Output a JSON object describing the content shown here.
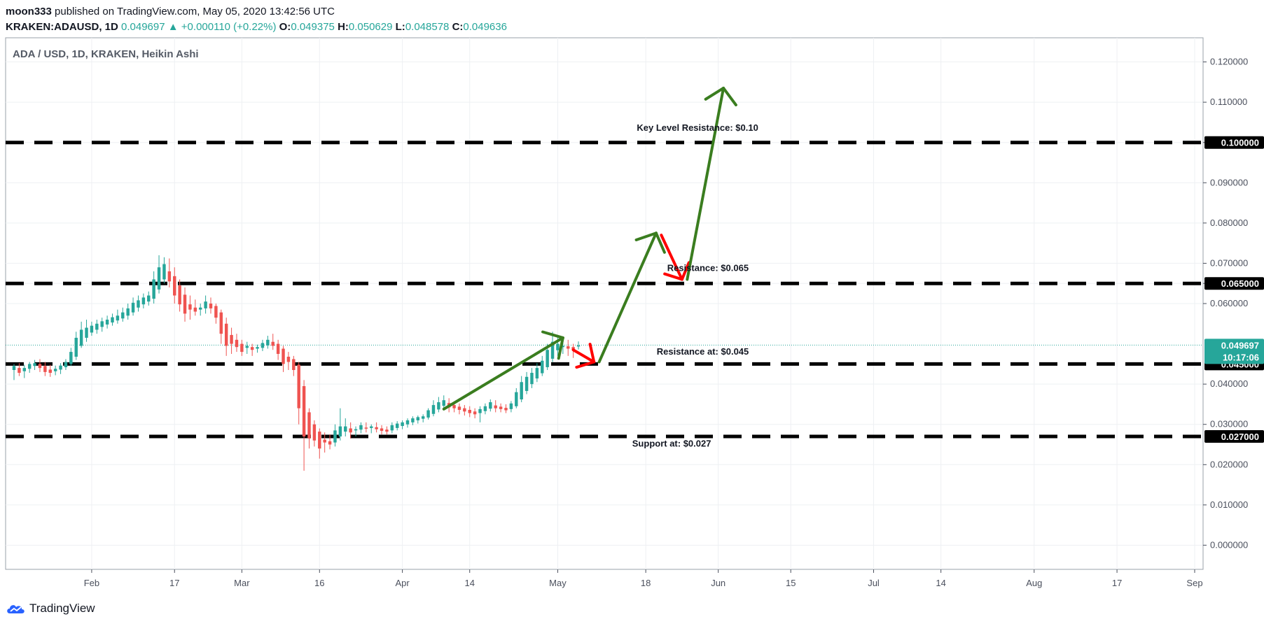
{
  "header": {
    "author": "moon333",
    "published_text": "published on TradingView.com, May 05, 2020 13:42:56 UTC",
    "symbol": "KRAKEN:ADAUSD, 1D",
    "last": "0.049697",
    "change_icon": "triangle-up-icon",
    "change_glyph": "▲",
    "change": "+0.000110 (+0.22%)",
    "o_label": "O:",
    "o_value": "0.049375",
    "h_label": "H:",
    "h_value": "0.050629",
    "l_label": "L:",
    "l_value": "0.048578",
    "c_label": "C:",
    "c_value": "0.049636"
  },
  "footer": {
    "brand": "TradingView"
  },
  "colors": {
    "up": "#26a69a",
    "down": "#ef5350",
    "arrow_green": "#3a7d1f",
    "arrow_red": "#ff0000",
    "level": "#000000",
    "price_tag": "#26a69a",
    "price_line": "#26a69a"
  },
  "chart_data": {
    "type": "candlestick",
    "title": "ADA / USD, 1D, KRAKEN, Heikin Ashi",
    "ylim": [
      -0.006,
      0.126
    ],
    "y_ticks": [
      {
        "value": 0.12,
        "label": "0.120000"
      },
      {
        "value": 0.11,
        "label": "0.110000"
      },
      {
        "value": 0.1,
        "label": "0.100000"
      },
      {
        "value": 0.09,
        "label": "0.090000"
      },
      {
        "value": 0.08,
        "label": "0.080000"
      },
      {
        "value": 0.07,
        "label": "0.070000"
      },
      {
        "value": 0.065,
        "label": "0.065000"
      },
      {
        "value": 0.06,
        "label": "0.060000"
      },
      {
        "value": 0.04,
        "label": "0.040000"
      },
      {
        "value": 0.03,
        "label": "0.030000"
      },
      {
        "value": 0.02,
        "label": "0.020000"
      },
      {
        "value": 0.01,
        "label": "0.010000"
      },
      {
        "value": 0.0,
        "label": "0.000000"
      }
    ],
    "x_range": [
      "2020-01-17",
      "2020-09-01"
    ],
    "x_ticks": [
      {
        "date": "2020-02-01",
        "label": "Feb"
      },
      {
        "date": "2020-02-17",
        "label": "17"
      },
      {
        "date": "2020-03-01",
        "label": "Mar"
      },
      {
        "date": "2020-03-16",
        "label": "16"
      },
      {
        "date": "2020-04-01",
        "label": "Apr"
      },
      {
        "date": "2020-04-14",
        "label": "14"
      },
      {
        "date": "2020-05-01",
        "label": "May"
      },
      {
        "date": "2020-05-18",
        "label": "18"
      },
      {
        "date": "2020-06-01",
        "label": "Jun"
      },
      {
        "date": "2020-06-15",
        "label": "15"
      },
      {
        "date": "2020-07-01",
        "label": "Jul"
      },
      {
        "date": "2020-07-14",
        "label": "14"
      },
      {
        "date": "2020-08-01",
        "label": "Aug"
      },
      {
        "date": "2020-08-17",
        "label": "17"
      },
      {
        "date": "2020-09-01",
        "label": "Sep"
      }
    ],
    "candles": [
      {
        "date": "2020-01-17",
        "o": 0.0435,
        "h": 0.045,
        "l": 0.041,
        "c": 0.0445
      },
      {
        "date": "2020-01-18",
        "o": 0.044,
        "h": 0.0452,
        "l": 0.042,
        "c": 0.0428
      },
      {
        "date": "2020-01-19",
        "o": 0.0432,
        "h": 0.0448,
        "l": 0.0415,
        "c": 0.044
      },
      {
        "date": "2020-01-20",
        "o": 0.0438,
        "h": 0.0455,
        "l": 0.0428,
        "c": 0.045
      },
      {
        "date": "2020-01-21",
        "o": 0.0445,
        "h": 0.046,
        "l": 0.0435,
        "c": 0.0452
      },
      {
        "date": "2020-01-22",
        "o": 0.045,
        "h": 0.0462,
        "l": 0.043,
        "c": 0.044
      },
      {
        "date": "2020-01-23",
        "o": 0.0445,
        "h": 0.0455,
        "l": 0.042,
        "c": 0.043
      },
      {
        "date": "2020-01-24",
        "o": 0.0436,
        "h": 0.0448,
        "l": 0.0418,
        "c": 0.0428
      },
      {
        "date": "2020-01-25",
        "o": 0.0432,
        "h": 0.0446,
        "l": 0.0422,
        "c": 0.0438
      },
      {
        "date": "2020-01-26",
        "o": 0.0436,
        "h": 0.0452,
        "l": 0.0425,
        "c": 0.0446
      },
      {
        "date": "2020-01-27",
        "o": 0.0442,
        "h": 0.0462,
        "l": 0.0435,
        "c": 0.0455
      },
      {
        "date": "2020-01-28",
        "o": 0.045,
        "h": 0.049,
        "l": 0.0445,
        "c": 0.048
      },
      {
        "date": "2020-01-29",
        "o": 0.0468,
        "h": 0.053,
        "l": 0.046,
        "c": 0.0515
      },
      {
        "date": "2020-01-30",
        "o": 0.0495,
        "h": 0.0555,
        "l": 0.049,
        "c": 0.0535
      },
      {
        "date": "2020-01-31",
        "o": 0.0515,
        "h": 0.056,
        "l": 0.0505,
        "c": 0.054
      },
      {
        "date": "2020-02-01",
        "o": 0.0528,
        "h": 0.0555,
        "l": 0.052,
        "c": 0.0545
      },
      {
        "date": "2020-02-02",
        "o": 0.0535,
        "h": 0.056,
        "l": 0.0525,
        "c": 0.055
      },
      {
        "date": "2020-02-03",
        "o": 0.0542,
        "h": 0.0565,
        "l": 0.053,
        "c": 0.0556
      },
      {
        "date": "2020-02-04",
        "o": 0.0548,
        "h": 0.057,
        "l": 0.0538,
        "c": 0.056
      },
      {
        "date": "2020-02-05",
        "o": 0.0553,
        "h": 0.0575,
        "l": 0.0545,
        "c": 0.0566
      },
      {
        "date": "2020-02-06",
        "o": 0.0558,
        "h": 0.0585,
        "l": 0.055,
        "c": 0.057
      },
      {
        "date": "2020-02-07",
        "o": 0.0563,
        "h": 0.059,
        "l": 0.0555,
        "c": 0.0578
      },
      {
        "date": "2020-02-08",
        "o": 0.057,
        "h": 0.06,
        "l": 0.056,
        "c": 0.0588
      },
      {
        "date": "2020-02-09",
        "o": 0.0578,
        "h": 0.0615,
        "l": 0.057,
        "c": 0.0602
      },
      {
        "date": "2020-02-10",
        "o": 0.059,
        "h": 0.062,
        "l": 0.058,
        "c": 0.0608
      },
      {
        "date": "2020-02-11",
        "o": 0.0598,
        "h": 0.0625,
        "l": 0.0588,
        "c": 0.0615
      },
      {
        "date": "2020-02-12",
        "o": 0.0605,
        "h": 0.063,
        "l": 0.0595,
        "c": 0.062
      },
      {
        "date": "2020-02-13",
        "o": 0.0612,
        "h": 0.068,
        "l": 0.06,
        "c": 0.066
      },
      {
        "date": "2020-02-14",
        "o": 0.0635,
        "h": 0.072,
        "l": 0.0625,
        "c": 0.069
      },
      {
        "date": "2020-02-15",
        "o": 0.066,
        "h": 0.0715,
        "l": 0.065,
        "c": 0.0698
      },
      {
        "date": "2020-02-16",
        "o": 0.068,
        "h": 0.0712,
        "l": 0.064,
        "c": 0.0655
      },
      {
        "date": "2020-02-17",
        "o": 0.0668,
        "h": 0.069,
        "l": 0.06,
        "c": 0.062
      },
      {
        "date": "2020-02-18",
        "o": 0.0645,
        "h": 0.066,
        "l": 0.058,
        "c": 0.0598
      },
      {
        "date": "2020-02-19",
        "o": 0.0622,
        "h": 0.064,
        "l": 0.0555,
        "c": 0.0575
      },
      {
        "date": "2020-02-20",
        "o": 0.0598,
        "h": 0.062,
        "l": 0.056,
        "c": 0.0585
      },
      {
        "date": "2020-02-21",
        "o": 0.059,
        "h": 0.061,
        "l": 0.057,
        "c": 0.058
      },
      {
        "date": "2020-02-22",
        "o": 0.0585,
        "h": 0.06,
        "l": 0.057,
        "c": 0.059
      },
      {
        "date": "2020-02-23",
        "o": 0.0588,
        "h": 0.062,
        "l": 0.0575,
        "c": 0.0605
      },
      {
        "date": "2020-02-24",
        "o": 0.06,
        "h": 0.0615,
        "l": 0.0575,
        "c": 0.0588
      },
      {
        "date": "2020-02-25",
        "o": 0.0594,
        "h": 0.06,
        "l": 0.055,
        "c": 0.0565
      },
      {
        "date": "2020-02-26",
        "o": 0.0578,
        "h": 0.0585,
        "l": 0.05,
        "c": 0.0525
      },
      {
        "date": "2020-02-27",
        "o": 0.055,
        "h": 0.0565,
        "l": 0.047,
        "c": 0.0495
      },
      {
        "date": "2020-02-28",
        "o": 0.0522,
        "h": 0.054,
        "l": 0.0475,
        "c": 0.05
      },
      {
        "date": "2020-02-29",
        "o": 0.051,
        "h": 0.0525,
        "l": 0.048,
        "c": 0.0492
      },
      {
        "date": "2020-03-01",
        "o": 0.05,
        "h": 0.051,
        "l": 0.047,
        "c": 0.048
      },
      {
        "date": "2020-03-02",
        "o": 0.049,
        "h": 0.0505,
        "l": 0.0475,
        "c": 0.0495
      },
      {
        "date": "2020-03-03",
        "o": 0.0492,
        "h": 0.05,
        "l": 0.047,
        "c": 0.0485
      },
      {
        "date": "2020-03-04",
        "o": 0.0488,
        "h": 0.0498,
        "l": 0.0478,
        "c": 0.0492
      },
      {
        "date": "2020-03-05",
        "o": 0.049,
        "h": 0.051,
        "l": 0.0482,
        "c": 0.0502
      },
      {
        "date": "2020-03-06",
        "o": 0.0496,
        "h": 0.052,
        "l": 0.0488,
        "c": 0.051
      },
      {
        "date": "2020-03-07",
        "o": 0.0505,
        "h": 0.0525,
        "l": 0.0485,
        "c": 0.0495
      },
      {
        "date": "2020-03-08",
        "o": 0.05,
        "h": 0.051,
        "l": 0.046,
        "c": 0.0475
      },
      {
        "date": "2020-03-09",
        "o": 0.0488,
        "h": 0.0495,
        "l": 0.043,
        "c": 0.045
      },
      {
        "date": "2020-03-10",
        "o": 0.0468,
        "h": 0.048,
        "l": 0.0435,
        "c": 0.0455
      },
      {
        "date": "2020-03-11",
        "o": 0.0462,
        "h": 0.047,
        "l": 0.042,
        "c": 0.0435
      },
      {
        "date": "2020-03-12",
        "o": 0.0448,
        "h": 0.0455,
        "l": 0.03,
        "c": 0.034
      },
      {
        "date": "2020-03-13",
        "o": 0.0395,
        "h": 0.041,
        "l": 0.0185,
        "c": 0.027
      },
      {
        "date": "2020-03-14",
        "o": 0.033,
        "h": 0.034,
        "l": 0.024,
        "c": 0.0265
      },
      {
        "date": "2020-03-15",
        "o": 0.03,
        "h": 0.031,
        "l": 0.0245,
        "c": 0.026
      },
      {
        "date": "2020-03-16",
        "o": 0.0282,
        "h": 0.029,
        "l": 0.0215,
        "c": 0.024
      },
      {
        "date": "2020-03-17",
        "o": 0.0262,
        "h": 0.028,
        "l": 0.023,
        "c": 0.0255
      },
      {
        "date": "2020-03-18",
        "o": 0.0258,
        "h": 0.0275,
        "l": 0.0238,
        "c": 0.025
      },
      {
        "date": "2020-03-19",
        "o": 0.0255,
        "h": 0.03,
        "l": 0.0245,
        "c": 0.0285
      },
      {
        "date": "2020-03-20",
        "o": 0.027,
        "h": 0.034,
        "l": 0.026,
        "c": 0.0295
      },
      {
        "date": "2020-03-21",
        "o": 0.0282,
        "h": 0.0315,
        "l": 0.027,
        "c": 0.0295
      },
      {
        "date": "2020-03-22",
        "o": 0.029,
        "h": 0.0305,
        "l": 0.0265,
        "c": 0.028
      },
      {
        "date": "2020-03-23",
        "o": 0.0285,
        "h": 0.0295,
        "l": 0.027,
        "c": 0.0288
      },
      {
        "date": "2020-03-24",
        "o": 0.0287,
        "h": 0.0305,
        "l": 0.0278,
        "c": 0.0298
      },
      {
        "date": "2020-03-25",
        "o": 0.0292,
        "h": 0.0305,
        "l": 0.028,
        "c": 0.029
      },
      {
        "date": "2020-03-26",
        "o": 0.0291,
        "h": 0.03,
        "l": 0.0278,
        "c": 0.0295
      },
      {
        "date": "2020-03-27",
        "o": 0.0293,
        "h": 0.0305,
        "l": 0.028,
        "c": 0.0288
      },
      {
        "date": "2020-03-28",
        "o": 0.029,
        "h": 0.0298,
        "l": 0.0275,
        "c": 0.0284
      },
      {
        "date": "2020-03-29",
        "o": 0.0287,
        "h": 0.0295,
        "l": 0.0275,
        "c": 0.0282
      },
      {
        "date": "2020-03-30",
        "o": 0.0285,
        "h": 0.0305,
        "l": 0.0278,
        "c": 0.0298
      },
      {
        "date": "2020-03-31",
        "o": 0.0291,
        "h": 0.0308,
        "l": 0.0285,
        "c": 0.0302
      },
      {
        "date": "2020-04-01",
        "o": 0.0296,
        "h": 0.031,
        "l": 0.0288,
        "c": 0.0305
      },
      {
        "date": "2020-04-02",
        "o": 0.03,
        "h": 0.0315,
        "l": 0.0292,
        "c": 0.031
      },
      {
        "date": "2020-04-03",
        "o": 0.0305,
        "h": 0.032,
        "l": 0.0298,
        "c": 0.0315
      },
      {
        "date": "2020-04-04",
        "o": 0.031,
        "h": 0.0322,
        "l": 0.0302,
        "c": 0.0318
      },
      {
        "date": "2020-04-05",
        "o": 0.0314,
        "h": 0.0325,
        "l": 0.0305,
        "c": 0.032
      },
      {
        "date": "2020-04-06",
        "o": 0.0317,
        "h": 0.034,
        "l": 0.0312,
        "c": 0.0335
      },
      {
        "date": "2020-04-07",
        "o": 0.0326,
        "h": 0.036,
        "l": 0.032,
        "c": 0.0348
      },
      {
        "date": "2020-04-08",
        "o": 0.0337,
        "h": 0.0368,
        "l": 0.033,
        "c": 0.0355
      },
      {
        "date": "2020-04-09",
        "o": 0.0346,
        "h": 0.0372,
        "l": 0.0338,
        "c": 0.036
      },
      {
        "date": "2020-04-10",
        "o": 0.0353,
        "h": 0.0365,
        "l": 0.033,
        "c": 0.0342
      },
      {
        "date": "2020-04-11",
        "o": 0.0348,
        "h": 0.0355,
        "l": 0.033,
        "c": 0.034
      },
      {
        "date": "2020-04-12",
        "o": 0.0344,
        "h": 0.0352,
        "l": 0.0325,
        "c": 0.0336
      },
      {
        "date": "2020-04-13",
        "o": 0.034,
        "h": 0.0348,
        "l": 0.0322,
        "c": 0.0332
      },
      {
        "date": "2020-04-14",
        "o": 0.0336,
        "h": 0.0345,
        "l": 0.0318,
        "c": 0.0328
      },
      {
        "date": "2020-04-15",
        "o": 0.0332,
        "h": 0.034,
        "l": 0.0315,
        "c": 0.0325
      },
      {
        "date": "2020-04-16",
        "o": 0.0328,
        "h": 0.0345,
        "l": 0.0305,
        "c": 0.0338
      },
      {
        "date": "2020-04-17",
        "o": 0.0333,
        "h": 0.0352,
        "l": 0.0325,
        "c": 0.0345
      },
      {
        "date": "2020-04-18",
        "o": 0.0339,
        "h": 0.0362,
        "l": 0.0332,
        "c": 0.0355
      },
      {
        "date": "2020-04-19",
        "o": 0.0347,
        "h": 0.036,
        "l": 0.033,
        "c": 0.034
      },
      {
        "date": "2020-04-20",
        "o": 0.0344,
        "h": 0.0352,
        "l": 0.033,
        "c": 0.0338
      },
      {
        "date": "2020-04-21",
        "o": 0.0341,
        "h": 0.035,
        "l": 0.0328,
        "c": 0.0335
      },
      {
        "date": "2020-04-22",
        "o": 0.0338,
        "h": 0.0358,
        "l": 0.033,
        "c": 0.0352
      },
      {
        "date": "2020-04-23",
        "o": 0.0345,
        "h": 0.039,
        "l": 0.034,
        "c": 0.038
      },
      {
        "date": "2020-04-24",
        "o": 0.0362,
        "h": 0.042,
        "l": 0.0355,
        "c": 0.0405
      },
      {
        "date": "2020-04-25",
        "o": 0.0383,
        "h": 0.043,
        "l": 0.0375,
        "c": 0.0418
      },
      {
        "date": "2020-04-26",
        "o": 0.04,
        "h": 0.044,
        "l": 0.039,
        "c": 0.0428
      },
      {
        "date": "2020-04-27",
        "o": 0.0414,
        "h": 0.0452,
        "l": 0.0405,
        "c": 0.044
      },
      {
        "date": "2020-04-28",
        "o": 0.0427,
        "h": 0.047,
        "l": 0.042,
        "c": 0.0458
      },
      {
        "date": "2020-04-29",
        "o": 0.0442,
        "h": 0.05,
        "l": 0.0435,
        "c": 0.0485
      },
      {
        "date": "2020-04-30",
        "o": 0.0463,
        "h": 0.053,
        "l": 0.0455,
        "c": 0.0505
      },
      {
        "date": "2020-05-01",
        "o": 0.0484,
        "h": 0.052,
        "l": 0.047,
        "c": 0.05
      },
      {
        "date": "2020-05-02",
        "o": 0.0492,
        "h": 0.0512,
        "l": 0.0475,
        "c": 0.0495
      },
      {
        "date": "2020-05-03",
        "o": 0.0494,
        "h": 0.051,
        "l": 0.047,
        "c": 0.0488
      },
      {
        "date": "2020-05-04",
        "o": 0.0492,
        "h": 0.05,
        "l": 0.0465,
        "c": 0.0485
      },
      {
        "date": "2020-05-05",
        "o": 0.0494,
        "h": 0.0506,
        "l": 0.0486,
        "c": 0.0496
      }
    ],
    "last_price": {
      "value": 0.049697,
      "label": "0.049697",
      "countdown": "10:17:06"
    },
    "levels": [
      {
        "value": 0.1,
        "tag": "0.100000",
        "label": "Key Level Resistance: $0.10",
        "label_date": "2020-05-28",
        "label_value": 0.1029
      },
      {
        "value": 0.065,
        "tag": "0.065000",
        "label": "Resistance: $0.065",
        "label_date": "2020-05-30",
        "label_value": 0.0681
      },
      {
        "value": 0.045,
        "tag": "0.045000",
        "label": "Resistance at: $0.045",
        "label_date": "2020-05-29",
        "label_value": 0.0473
      },
      {
        "value": 0.027,
        "tag": "0.027000",
        "label": "Support at: $0.027",
        "label_date": "2020-05-23",
        "label_value": 0.0245
      }
    ],
    "arrows": [
      {
        "color": "green",
        "from": {
          "date": "2020-04-09",
          "value": 0.0338
        },
        "to": {
          "date": "2020-05-02",
          "value": 0.0515
        }
      },
      {
        "color": "red",
        "from": {
          "date": "2020-05-04",
          "value": 0.0485
        },
        "to": {
          "date": "2020-05-08",
          "value": 0.0455
        }
      },
      {
        "color": "green",
        "from": {
          "date": "2020-05-09",
          "value": 0.0455
        },
        "to": {
          "date": "2020-05-20",
          "value": 0.0775
        }
      },
      {
        "color": "red",
        "from": {
          "date": "2020-05-21",
          "value": 0.077
        },
        "to": {
          "date": "2020-05-25",
          "value": 0.066
        }
      },
      {
        "color": "green",
        "from": {
          "date": "2020-05-26",
          "value": 0.066
        },
        "to": {
          "date": "2020-06-02",
          "value": 0.1135
        }
      }
    ]
  }
}
